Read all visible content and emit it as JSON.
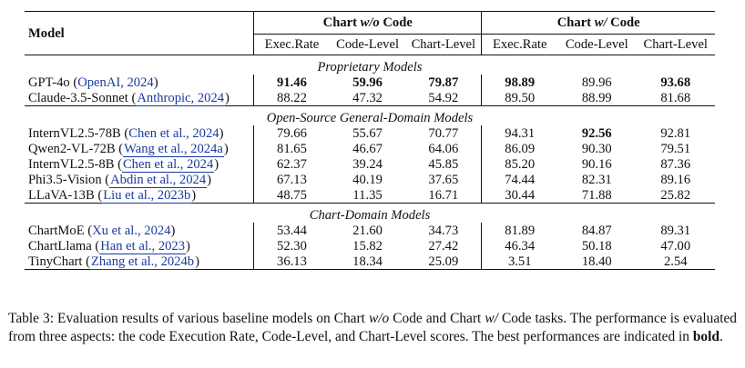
{
  "table": {
    "model_header": "Model",
    "group_headers": [
      {
        "pre": "Chart ",
        "em": "w/o",
        "post": " Code"
      },
      {
        "pre": "Chart ",
        "em": "w/",
        "post": " Code"
      }
    ],
    "sub_headers": [
      "Exec.Rate",
      "Code-Level",
      "Chart-Level",
      "Exec.Rate",
      "Code-Level",
      "Chart-Level"
    ],
    "sections": [
      {
        "title": "Proprietary Models",
        "rows": [
          {
            "model": "GPT-4o",
            "cite": "OpenAI, 2024",
            "boxed": false,
            "values": [
              "91.46",
              "59.96",
              "79.87",
              "98.89",
              "89.96",
              "93.68"
            ],
            "bold": [
              true,
              true,
              true,
              true,
              false,
              true
            ]
          },
          {
            "model": "Claude-3.5-Sonnet",
            "cite": "Anthropic, 2024",
            "boxed": true,
            "values": [
              "88.22",
              "47.32",
              "54.92",
              "89.50",
              "88.99",
              "81.68"
            ],
            "bold": [
              false,
              false,
              false,
              false,
              false,
              false
            ]
          }
        ]
      },
      {
        "title": "Open-Source General-Domain Models",
        "rows": [
          {
            "model": "InternVL2.5-78B",
            "cite": "Chen et al., 2024",
            "boxed": false,
            "values": [
              "79.66",
              "55.67",
              "70.77",
              "94.31",
              "92.56",
              "92.81"
            ],
            "bold": [
              false,
              false,
              false,
              false,
              true,
              false
            ]
          },
          {
            "model": "Qwen2-VL-72B",
            "cite": "Wang et al., 2024a",
            "boxed": true,
            "values": [
              "81.65",
              "46.67",
              "64.06",
              "86.09",
              "90.30",
              "79.51"
            ],
            "bold": [
              false,
              false,
              false,
              false,
              false,
              false
            ]
          },
          {
            "model": "InternVL2.5-8B",
            "cite": "Chen et al., 2024",
            "boxed": true,
            "values": [
              "62.37",
              "39.24",
              "45.85",
              "85.20",
              "90.16",
              "87.36"
            ],
            "bold": [
              false,
              false,
              false,
              false,
              false,
              false
            ]
          },
          {
            "model": "Phi3.5-Vision",
            "cite": "Abdin et al., 2024",
            "boxed": true,
            "values": [
              "67.13",
              "40.19",
              "37.65",
              "74.44",
              "82.31",
              "89.16"
            ],
            "bold": [
              false,
              false,
              false,
              false,
              false,
              false
            ]
          },
          {
            "model": "LLaVA-13B",
            "cite": "Liu et al., 2023b",
            "boxed": true,
            "values": [
              "48.75",
              "11.35",
              "16.71",
              "30.44",
              "71.88",
              "25.82"
            ],
            "bold": [
              false,
              false,
              false,
              false,
              false,
              false
            ]
          }
        ]
      },
      {
        "title": "Chart-Domain Models",
        "rows": [
          {
            "model": "ChartMoE",
            "cite": "Xu et al., 2024",
            "boxed": false,
            "values": [
              "53.44",
              "21.60",
              "34.73",
              "81.89",
              "84.87",
              "89.31"
            ],
            "bold": [
              false,
              false,
              false,
              false,
              false,
              false
            ]
          },
          {
            "model": "ChartLlama",
            "cite": "Han et al., 2023",
            "boxed": true,
            "values": [
              "52.30",
              "15.82",
              "27.42",
              "46.34",
              "50.18",
              "47.00"
            ],
            "bold": [
              false,
              false,
              false,
              false,
              false,
              false
            ]
          },
          {
            "model": "TinyChart",
            "cite": "Zhang et al., 2024b",
            "boxed": true,
            "values": [
              "36.13",
              "18.34",
              "25.09",
              "3.51",
              "18.40",
              "2.54"
            ],
            "bold": [
              false,
              false,
              false,
              false,
              false,
              false
            ]
          }
        ]
      }
    ]
  },
  "caption": {
    "label": "Table 3:",
    "text_1": " Evaluation results of various baseline models on Chart ",
    "em_1": "w/o",
    "text_2": " Code and Chart ",
    "em_2": "w/",
    "text_3": " Code tasks. The performance is evaluated from three aspects: the code Execution Rate, Code-Level, and Chart-Level scores. The best performances are indicated in ",
    "bold_word": "bold",
    "text_4": "."
  }
}
